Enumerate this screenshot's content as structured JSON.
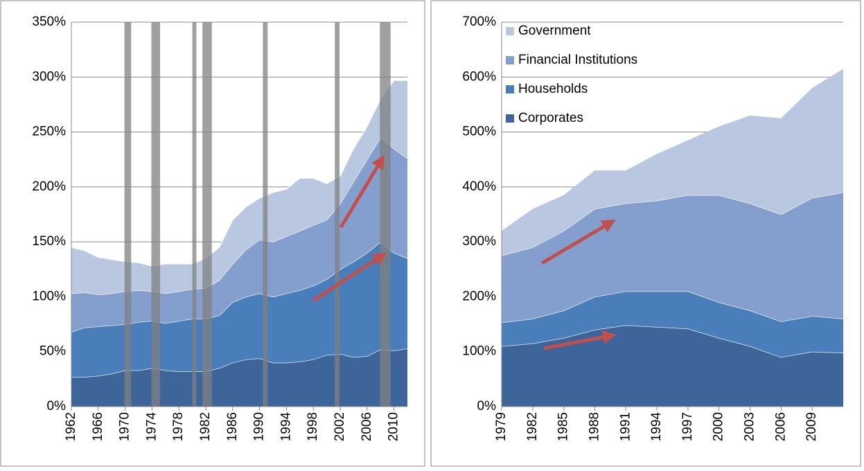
{
  "chart_data": [
    {
      "type": "stacked_area",
      "x": [
        1962,
        1964,
        1966,
        1968,
        1970,
        1972,
        1974,
        1976,
        1978,
        1980,
        1982,
        1984,
        1986,
        1988,
        1990,
        1992,
        1994,
        1996,
        1998,
        2000,
        2002,
        2004,
        2006,
        2008,
        2010,
        2012
      ],
      "series": [
        {
          "color": "#3d659a",
          "values": [
            27,
            27,
            28,
            30,
            33,
            33,
            35,
            33,
            32,
            32,
            32,
            35,
            40,
            43,
            44,
            40,
            40,
            41,
            43,
            47,
            48,
            45,
            46,
            52,
            51,
            53
          ]
        },
        {
          "color": "#4a7ebb",
          "values": [
            41,
            45,
            45,
            44,
            42,
            44,
            43,
            43,
            46,
            48,
            48,
            48,
            55,
            57,
            59,
            60,
            63,
            65,
            67,
            69,
            77,
            87,
            94,
            98,
            89,
            82
          ]
        },
        {
          "color": "#849fcd",
          "values": [
            35,
            32,
            29,
            29,
            30,
            29,
            27,
            27,
            27,
            27,
            28,
            32,
            35,
            43,
            49,
            50,
            52,
            54,
            55,
            54,
            60,
            73,
            85,
            95,
            95,
            91
          ]
        },
        {
          "color": "#b9c7e1",
          "values": [
            42,
            38,
            34,
            31,
            27,
            25,
            23,
            27,
            25,
            23,
            27,
            30,
            40,
            39,
            38,
            45,
            43,
            48,
            43,
            33,
            25,
            30,
            30,
            35,
            62,
            71
          ]
        }
      ],
      "shaded_ranges": [
        [
          1969.9,
          1970.9
        ],
        [
          1973.9,
          1975.2
        ],
        [
          1980.0,
          1980.6
        ],
        [
          1981.5,
          1982.9
        ],
        [
          1990.5,
          1991.2
        ],
        [
          2001.2,
          2001.9
        ],
        [
          2007.9,
          2009.5
        ]
      ],
      "shade_color": "#808080",
      "xlim": [
        1962,
        2012
      ],
      "xticks": [
        1962,
        1966,
        1970,
        1974,
        1978,
        1982,
        1986,
        1990,
        1994,
        1998,
        2002,
        2006,
        2010
      ],
      "ylim": [
        0,
        350
      ],
      "yticks": [
        {
          "value": 0,
          "label": "0%"
        },
        {
          "value": 50,
          "label": "50%"
        },
        {
          "value": 100,
          "label": "100%"
        },
        {
          "value": 150,
          "label": "150%"
        },
        {
          "value": 200,
          "label": "200%"
        },
        {
          "value": 250,
          "label": "250%"
        },
        {
          "value": 300,
          "label": "300%"
        },
        {
          "value": 350,
          "label": "350%"
        }
      ],
      "grid": true
    },
    {
      "type": "stacked_area",
      "x": [
        1979,
        1982,
        1985,
        1988,
        1991,
        1994,
        1997,
        2000,
        2003,
        2006,
        2009,
        2012
      ],
      "series": [
        {
          "name": "Corporates",
          "color": "#3d659a",
          "values": [
            110,
            115,
            125,
            140,
            148,
            145,
            142,
            125,
            110,
            90,
            100,
            98
          ]
        },
        {
          "name": "Households",
          "color": "#4a7ebb",
          "values": [
            43,
            45,
            50,
            60,
            62,
            65,
            68,
            65,
            65,
            65,
            65,
            62
          ]
        },
        {
          "name": "Financial Institutions",
          "color": "#849fcd",
          "values": [
            122,
            130,
            145,
            160,
            160,
            165,
            175,
            195,
            195,
            195,
            215,
            230
          ]
        },
        {
          "name": "Government",
          "color": "#b9c7e1",
          "values": [
            45,
            70,
            65,
            70,
            60,
            85,
            100,
            125,
            160,
            175,
            200,
            225
          ]
        }
      ],
      "xlim": [
        1979,
        2012
      ],
      "xticks": [
        1979,
        1982,
        1985,
        1988,
        1991,
        1994,
        1997,
        2000,
        2003,
        2006,
        2009
      ],
      "ylim": [
        0,
        700
      ],
      "yticks": [
        {
          "value": 0,
          "label": "0%"
        },
        {
          "value": 100,
          "label": "100%"
        },
        {
          "value": 200,
          "label": "200%"
        },
        {
          "value": 300,
          "label": "300%"
        },
        {
          "value": 400,
          "label": "400%"
        },
        {
          "value": 500,
          "label": "500%"
        },
        {
          "value": 600,
          "label": "600%"
        },
        {
          "value": 700,
          "label": "700%"
        }
      ],
      "grid": true,
      "legend": "upper left"
    }
  ]
}
